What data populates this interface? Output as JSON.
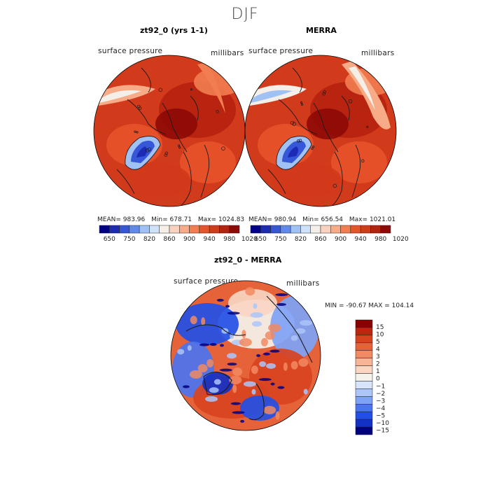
{
  "season": "DJF",
  "colors": {
    "scale": [
      "#00008b",
      "#1c2bb5",
      "#3657d8",
      "#5f8ae8",
      "#9fc1f4",
      "#cfe2fa",
      "#f4efe8",
      "#f8d2bf",
      "#f7ab86",
      "#f27d50",
      "#e8532b",
      "#d23a1c",
      "#b52210",
      "#8e0a07"
    ],
    "diff_scale": [
      "#000080",
      "#1431c6",
      "#2250e6",
      "#4b74f0",
      "#7ea2f6",
      "#acc6fa",
      "#d7e5fc",
      "#f5f2ec",
      "#f9d5c2",
      "#f7b496",
      "#f18a62",
      "#e6633a",
      "#d8431f",
      "#bc260e",
      "#8b0000"
    ],
    "land_line": "#1a1a1a"
  },
  "panels": [
    {
      "title": "zt92_0 (yrs 1-1)",
      "left_label": "surface pressure",
      "right_label": "millibars",
      "stats": {
        "mean": "983.96",
        "min": "678.71",
        "max": "1024.83"
      },
      "stats_text": {
        "mean_label": "MEAN=",
        "min_label": "Min=",
        "max_label": "Max="
      }
    },
    {
      "title": "MERRA",
      "left_label": "surface pressure",
      "right_label": "millibars",
      "stats": {
        "mean": "980.94",
        "min": "656.54",
        "max": "1021.01"
      },
      "stats_text": {
        "mean_label": "MEAN=",
        "min_label": "Min=",
        "max_label": "Max="
      }
    },
    {
      "title": "zt92_0 - MERRA",
      "left_label": "surface pressure",
      "right_label": "millibars",
      "minmax_text": "MIN = -90.67 MAX = 104.14"
    }
  ],
  "chart_data": [
    {
      "type": "heatmap",
      "title": "zt92_0 (yrs 1-1)",
      "variable": "surface pressure",
      "units": "millibars",
      "projection": "polar stereographic (north pole)",
      "mean": 983.96,
      "min": 678.71,
      "max": 1024.83,
      "colorbar_ticks": [
        650,
        750,
        820,
        860,
        900,
        940,
        980,
        1020
      ]
    },
    {
      "type": "heatmap",
      "title": "MERRA",
      "variable": "surface pressure",
      "units": "millibars",
      "projection": "polar stereographic (north pole)",
      "mean": 980.94,
      "min": 656.54,
      "max": 1021.01,
      "colorbar_ticks": [
        650,
        750,
        820,
        860,
        900,
        940,
        980,
        1020
      ]
    },
    {
      "type": "heatmap",
      "title": "zt92_0 - MERRA",
      "variable": "surface pressure",
      "units": "millibars",
      "projection": "polar stereographic (north pole)",
      "min": -90.67,
      "max": 104.14,
      "colorbar_ticks": [
        15,
        10,
        5,
        4,
        3,
        2,
        1,
        0,
        -1,
        -2,
        -3,
        -4,
        -5,
        -10,
        -15
      ]
    }
  ]
}
